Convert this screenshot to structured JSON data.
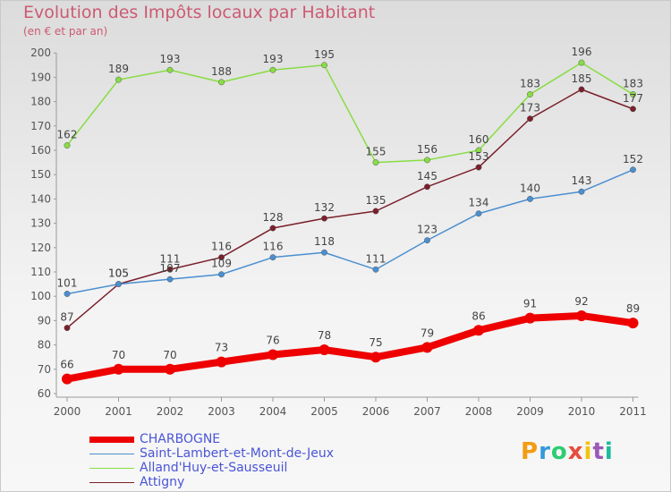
{
  "header": {
    "title": "Evolution des Impôts locaux par Habitant",
    "subtitle": "(en € et par an)"
  },
  "logo": {
    "text": "Proxiti"
  },
  "chart_data": {
    "type": "line",
    "title": "Evolution des Impôts locaux par Habitant",
    "subtitle": "(en € et par an)",
    "xlabel": "",
    "ylabel": "",
    "x": [
      "2000",
      "2001",
      "2002",
      "2003",
      "2004",
      "2005",
      "2006",
      "2007",
      "2008",
      "2009",
      "2010",
      "2011"
    ],
    "ylim": [
      60,
      200
    ],
    "yticks": [
      60,
      70,
      80,
      90,
      100,
      110,
      120,
      130,
      140,
      150,
      160,
      170,
      180,
      190,
      200
    ],
    "grid": false,
    "legend_position": "bottom-left",
    "series": [
      {
        "name": "CHARBOGNE",
        "color": "#ee0000",
        "values": [
          66,
          70,
          70,
          73,
          76,
          78,
          75,
          79,
          86,
          91,
          92,
          89
        ]
      },
      {
        "name": "Saint-Lambert-et-Mont-de-Jeux",
        "color": "#4a8fd0",
        "values": [
          101,
          105,
          107,
          109,
          116,
          118,
          111,
          123,
          134,
          140,
          143,
          152
        ]
      },
      {
        "name": "Alland'Huy-et-Sausseuil",
        "color": "#88dd44",
        "values": [
          162,
          189,
          193,
          188,
          193,
          195,
          155,
          156,
          160,
          183,
          196,
          183
        ]
      },
      {
        "name": "Attigny",
        "color": "#7a1f2b",
        "values": [
          87,
          105,
          111,
          116,
          128,
          132,
          135,
          145,
          153,
          173,
          185,
          177
        ]
      }
    ]
  }
}
